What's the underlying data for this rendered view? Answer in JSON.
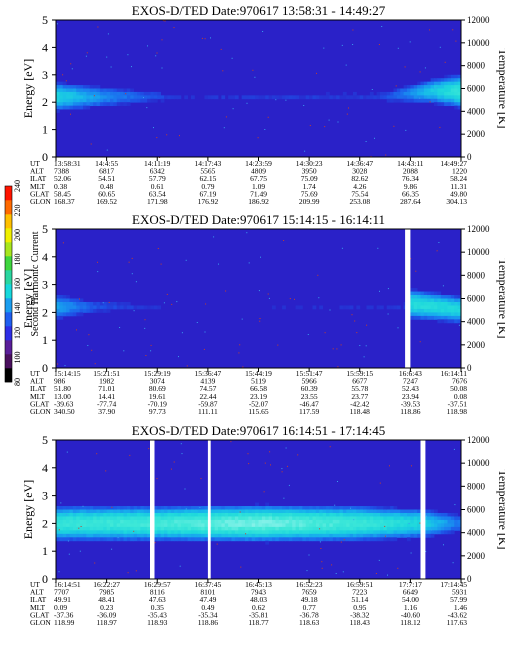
{
  "colorbar": {
    "label": "Second Harmonic Current",
    "ticks": [
      80,
      100,
      120,
      140,
      160,
      180,
      200,
      220,
      240
    ],
    "colors": [
      "#000000",
      "#4a0f5e",
      "#5a1e9a",
      "#2e2ee6",
      "#1f5ff0",
      "#1a9ef0",
      "#17d8dc",
      "#2ad6a0",
      "#3ed63e",
      "#a8e61e",
      "#f0f000",
      "#ffc000",
      "#ff6a00",
      "#ff1400"
    ]
  },
  "chart_data": [
    {
      "type": "heatmap",
      "title": "EXOS-D/TED   Date:970617  13:58:31 - 14:49:27",
      "ylabel": "Energy [eV]",
      "ylabel_right": "Temperature [K]",
      "ylim": [
        0,
        5
      ],
      "ylim_right": [
        0,
        12000
      ],
      "yticks": [
        0,
        1,
        2,
        3,
        4,
        5
      ],
      "yticks_right": [
        0,
        2000,
        4000,
        6000,
        8000,
        10000,
        12000
      ],
      "gaps": [],
      "band": [
        {
          "t": 0.0,
          "center": 2.2,
          "width": 1.1,
          "level": 0.55
        },
        {
          "t": 0.1,
          "center": 2.2,
          "width": 0.8,
          "level": 0.35
        },
        {
          "t": 0.3,
          "center": 2.2,
          "width": 0.2,
          "level": 0.05
        },
        {
          "t": 0.8,
          "center": 2.2,
          "width": 0.3,
          "level": 0.08
        },
        {
          "t": 0.93,
          "center": 2.4,
          "width": 0.9,
          "level": 0.5
        },
        {
          "t": 1.0,
          "center": 2.4,
          "width": 1.3,
          "level": 0.65
        }
      ],
      "table": {
        "rows": [
          {
            "label": "UT",
            "values": [
              "13:58:31",
              "14:4:55",
              "14:11:19",
              "14:17:43",
              "14:23:59",
              "14:30:23",
              "14:36:47",
              "14:43:11",
              "14:49:27"
            ]
          },
          {
            "label": "ALT",
            "values": [
              "7388",
              "6817",
              "6342",
              "5565",
              "4809",
              "3950",
              "3028",
              "2088",
              "1220"
            ]
          },
          {
            "label": "ILAT",
            "values": [
              "52.06",
              "54.51",
              "57.79",
              "62.15",
              "67.75",
              "75.09",
              "82.62",
              "76.34",
              "58.24"
            ]
          },
          {
            "label": "MLT",
            "values": [
              "0.38",
              "0.48",
              "0.61",
              "0.79",
              "1.09",
              "1.74",
              "4.26",
              "9.86",
              "11.31"
            ]
          },
          {
            "label": "GLAT",
            "values": [
              "58.45",
              "60.65",
              "63.54",
              "67.19",
              "71.49",
              "75.69",
              "75.54",
              "66.35",
              "49.80"
            ]
          },
          {
            "label": "GLON",
            "values": [
              "168.37",
              "169.52",
              "171.98",
              "176.92",
              "186.92",
              "209.99",
              "253.08",
              "287.64",
              "304.13"
            ]
          }
        ]
      }
    },
    {
      "type": "heatmap",
      "title": "EXOS-D/TED   Date:970617  15:14:15 - 16:14:11",
      "ylabel": "Energy [eV]",
      "ylabel_right": "Temperature [K]",
      "ylim": [
        0,
        5
      ],
      "ylim_right": [
        0,
        12000
      ],
      "yticks": [
        0,
        1,
        2,
        3,
        4,
        5
      ],
      "yticks_right": [
        0,
        2000,
        4000,
        6000,
        8000,
        10000,
        12000
      ],
      "gaps": [
        [
          0.862,
          0.875
        ]
      ],
      "band": [
        {
          "t": 0.0,
          "center": 2.2,
          "width": 0.9,
          "level": 0.4
        },
        {
          "t": 0.1,
          "center": 2.2,
          "width": 0.4,
          "level": 0.15
        },
        {
          "t": 0.3,
          "center": 2.2,
          "width": 0.1,
          "level": 0.0
        },
        {
          "t": 0.86,
          "center": 2.2,
          "width": 0.2,
          "level": 0.05
        },
        {
          "t": 0.88,
          "center": 2.3,
          "width": 1.1,
          "level": 0.6
        },
        {
          "t": 1.0,
          "center": 2.1,
          "width": 1.0,
          "level": 0.55
        }
      ],
      "table": {
        "rows": [
          {
            "label": "UT",
            "values": [
              "15:14:15",
              "15:21:51",
              "15:29:19",
              "15:36:47",
              "15:44:19",
              "15:51:47",
              "15:59:15",
              "16:6:43",
              "16:14:11"
            ]
          },
          {
            "label": "ALT",
            "values": [
              "986",
              "1982",
              "3074",
              "4139",
              "5119",
              "5966",
              "6677",
              "7247",
              "7676"
            ]
          },
          {
            "label": "ILAT",
            "values": [
              "51.80",
              "71.01",
              "80.69",
              "74.57",
              "66.58",
              "60.39",
              "55.78",
              "52.43",
              "50.08"
            ]
          },
          {
            "label": "MLT",
            "values": [
              "13.00",
              "14.41",
              "19.61",
              "22.44",
              "23.19",
              "23.55",
              "23.77",
              "23.94",
              "0.08"
            ]
          },
          {
            "label": "GLAT",
            "values": [
              "-39.63",
              "-77.74",
              "-70.19",
              "-59.87",
              "-52.07",
              "-46.47",
              "-42.42",
              "-39.53",
              "-37.51"
            ]
          },
          {
            "label": "GLON",
            "values": [
              "340.50",
              "37.90",
              "97.73",
              "111.11",
              "115.65",
              "117.59",
              "118.48",
              "118.86",
              "118.98"
            ]
          }
        ]
      }
    },
    {
      "type": "heatmap",
      "title": "EXOS-D/TED   Date:970617  16:14:51 - 17:14:45",
      "ylabel": "Energy [eV]",
      "ylabel_right": "Temperature [K]",
      "ylim": [
        0,
        5
      ],
      "ylim_right": [
        0,
        12000
      ],
      "yticks": [
        0,
        1,
        2,
        3,
        4,
        5
      ],
      "yticks_right": [
        0,
        2000,
        4000,
        6000,
        8000,
        10000,
        12000
      ],
      "gaps": [
        [
          0.232,
          0.243
        ],
        [
          0.375,
          0.382
        ],
        [
          0.9,
          0.912
        ]
      ],
      "band": [
        {
          "t": 0.0,
          "center": 2.0,
          "width": 1.3,
          "level": 0.65
        },
        {
          "t": 0.25,
          "center": 2.0,
          "width": 1.3,
          "level": 0.7
        },
        {
          "t": 0.5,
          "center": 2.0,
          "width": 1.4,
          "level": 0.78
        },
        {
          "t": 0.75,
          "center": 2.0,
          "width": 1.3,
          "level": 0.68
        },
        {
          "t": 0.9,
          "center": 2.0,
          "width": 1.1,
          "level": 0.55
        },
        {
          "t": 1.0,
          "center": 2.0,
          "width": 0.6,
          "level": 0.25
        }
      ],
      "table": {
        "rows": [
          {
            "label": "UT",
            "values": [
              "16:14:51",
              "16:22:27",
              "16:29:57",
              "16:37:45",
              "16:45:13",
              "16:52:23",
              "16:59:51",
              "17:7:17",
              "17:14:45"
            ]
          },
          {
            "label": "ALT",
            "values": [
              "7707",
              "7985",
              "8116",
              "8101",
              "7943",
              "7659",
              "7223",
              "6649",
              "5931"
            ]
          },
          {
            "label": "ILAT",
            "values": [
              "49.91",
              "48.41",
              "47.63",
              "47.49",
              "48.03",
              "49.18",
              "51.14",
              "54.00",
              "57.99"
            ]
          },
          {
            "label": "MLT",
            "values": [
              "0.09",
              "0.23",
              "0.35",
              "0.49",
              "0.62",
              "0.77",
              "0.95",
              "1.16",
              "1.46"
            ]
          },
          {
            "label": "GLAT",
            "values": [
              "-37.36",
              "-36.09",
              "-35.43",
              "-35.34",
              "-35.81",
              "-36.78",
              "-38.32",
              "-40.60",
              "-43.62"
            ]
          },
          {
            "label": "GLON",
            "values": [
              "118.99",
              "118.97",
              "118.93",
              "118.86",
              "118.77",
              "118.63",
              "118.43",
              "118.12",
              "117.63"
            ]
          }
        ]
      }
    }
  ]
}
